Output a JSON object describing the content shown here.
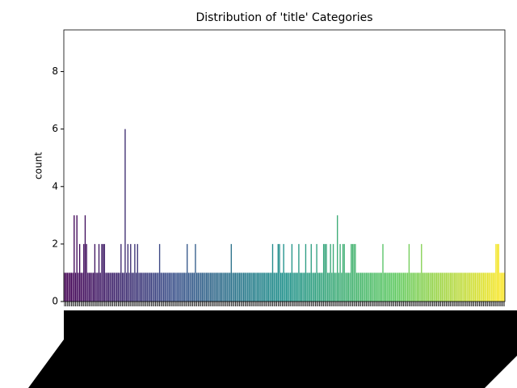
{
  "chart_data": {
    "type": "bar",
    "title": "Distribution of 'title' Categories",
    "y_label": "count",
    "palette": "viridis",
    "categories": [
      null,
      null,
      null,
      null,
      null,
      null,
      null,
      null,
      null,
      null,
      null,
      null,
      null,
      null,
      null,
      null,
      null,
      null,
      null,
      null,
      null,
      null,
      null,
      null,
      null,
      null,
      null,
      null,
      null,
      null,
      null,
      null,
      null,
      null,
      null,
      null,
      null,
      null,
      null,
      null,
      null,
      null,
      null,
      null,
      null,
      null,
      null,
      null,
      null,
      null,
      null,
      null,
      null,
      null,
      null,
      null,
      null,
      null,
      null,
      null,
      null,
      null,
      null,
      null,
      null,
      null,
      null,
      null,
      null,
      null,
      null,
      null,
      null,
      null,
      null,
      null,
      null,
      null,
      null,
      null,
      null,
      null,
      null,
      null,
      null,
      null,
      null,
      null,
      null,
      null,
      null,
      null,
      null,
      null,
      null,
      null,
      null,
      null,
      null,
      null,
      null,
      null,
      null,
      null,
      null,
      null,
      null,
      null,
      null,
      null,
      null,
      null,
      null,
      null,
      null,
      null,
      null,
      null,
      null,
      null,
      null,
      null,
      null,
      null,
      null,
      null,
      null,
      null,
      null,
      null,
      null,
      null,
      null,
      null,
      null,
      null,
      null,
      null,
      null,
      null,
      null,
      null,
      null,
      null,
      null,
      null,
      null,
      null,
      null,
      null,
      null,
      null,
      null,
      null,
      null,
      null,
      null,
      null,
      null,
      null,
      null,
      null,
      null,
      null,
      null,
      null,
      null,
      null,
      null,
      null,
      null,
      null,
      null,
      null,
      null,
      null,
      null,
      null,
      null,
      null,
      null,
      null,
      null,
      null,
      null,
      null,
      null,
      null,
      null,
      null,
      null,
      null,
      null,
      null,
      null,
      null,
      null,
      null,
      null,
      null,
      null,
      null,
      null,
      null,
      null,
      null,
      null,
      null,
      null,
      null,
      null,
      null,
      null,
      null,
      null,
      null,
      null,
      null,
      null,
      null,
      null,
      null,
      null,
      null,
      null,
      null,
      null,
      null,
      null,
      null,
      null,
      null,
      null,
      null,
      null,
      null,
      null,
      null,
      null,
      null,
      null,
      null,
      null,
      null,
      null,
      null,
      null,
      null,
      null,
      null,
      null,
      null,
      null,
      null,
      null,
      null,
      null,
      null,
      null,
      null,
      null,
      null,
      null,
      null,
      null,
      null,
      null,
      null,
      null,
      null,
      null,
      null,
      null,
      null,
      null,
      null,
      null,
      null,
      null,
      null,
      null,
      null,
      null,
      null,
      null,
      null,
      null,
      null,
      null,
      null,
      null,
      null,
      null,
      null,
      null,
      null,
      null,
      null,
      null,
      null,
      null,
      null,
      null,
      null,
      null,
      null,
      null,
      null,
      null,
      null,
      null,
      null,
      null,
      null,
      null,
      null,
      null,
      null,
      null,
      null
    ],
    "values": [
      1,
      1,
      1,
      1,
      1,
      1,
      1,
      3,
      1,
      3,
      1,
      2,
      1,
      1,
      2,
      3,
      2,
      1,
      1,
      1,
      1,
      1,
      2,
      1,
      1,
      2,
      1,
      2,
      2,
      2,
      1,
      1,
      1,
      1,
      1,
      1,
      1,
      1,
      1,
      1,
      1,
      2,
      1,
      1,
      6,
      1,
      2,
      1,
      2,
      1,
      1,
      2,
      1,
      2,
      1,
      1,
      1,
      1,
      1,
      1,
      1,
      1,
      1,
      1,
      1,
      1,
      1,
      1,
      1,
      2,
      1,
      1,
      1,
      1,
      1,
      1,
      1,
      1,
      1,
      1,
      1,
      1,
      1,
      1,
      1,
      1,
      1,
      1,
      1,
      2,
      1,
      1,
      1,
      1,
      1,
      2,
      1,
      1,
      1,
      1,
      1,
      1,
      1,
      1,
      1,
      1,
      1,
      1,
      1,
      1,
      1,
      1,
      1,
      1,
      1,
      1,
      1,
      1,
      1,
      1,
      1,
      2,
      1,
      1,
      1,
      1,
      1,
      1,
      1,
      1,
      1,
      1,
      1,
      1,
      1,
      1,
      1,
      1,
      1,
      1,
      1,
      1,
      1,
      1,
      1,
      1,
      1,
      1,
      1,
      1,
      1,
      2,
      1,
      1,
      1,
      2,
      2,
      1,
      1,
      2,
      1,
      1,
      1,
      1,
      1,
      2,
      1,
      1,
      1,
      1,
      2,
      1,
      1,
      1,
      1,
      2,
      1,
      1,
      1,
      2,
      1,
      1,
      1,
      2,
      1,
      1,
      1,
      1,
      2,
      2,
      2,
      1,
      1,
      2,
      1,
      2,
      1,
      1,
      3,
      1,
      2,
      1,
      2,
      2,
      1,
      1,
      1,
      1,
      2,
      2,
      2,
      2,
      1,
      1,
      1,
      1,
      1,
      1,
      1,
      1,
      1,
      1,
      1,
      1,
      1,
      1,
      1,
      1,
      1,
      1,
      1,
      2,
      1,
      1,
      1,
      1,
      1,
      1,
      1,
      1,
      1,
      1,
      1,
      1,
      1,
      1,
      1,
      1,
      1,
      1,
      2,
      1,
      1,
      1,
      1,
      1,
      1,
      1,
      1,
      2,
      1,
      1,
      1,
      1,
      1,
      1,
      1,
      1,
      1,
      1,
      1,
      1,
      1,
      1,
      1,
      1,
      1,
      1,
      1,
      1,
      1,
      1,
      1,
      1,
      1,
      1,
      1,
      1,
      1,
      1,
      1,
      1,
      1,
      1,
      1,
      1,
      1,
      1,
      1,
      1,
      1,
      1,
      1,
      1,
      1,
      1,
      1,
      1,
      1,
      1,
      1,
      1,
      1,
      2,
      2,
      2,
      1,
      1,
      1,
      1
    ],
    "ylim": [
      0,
      9.45
    ],
    "yticks": [
      0,
      2,
      4,
      6,
      8
    ]
  }
}
